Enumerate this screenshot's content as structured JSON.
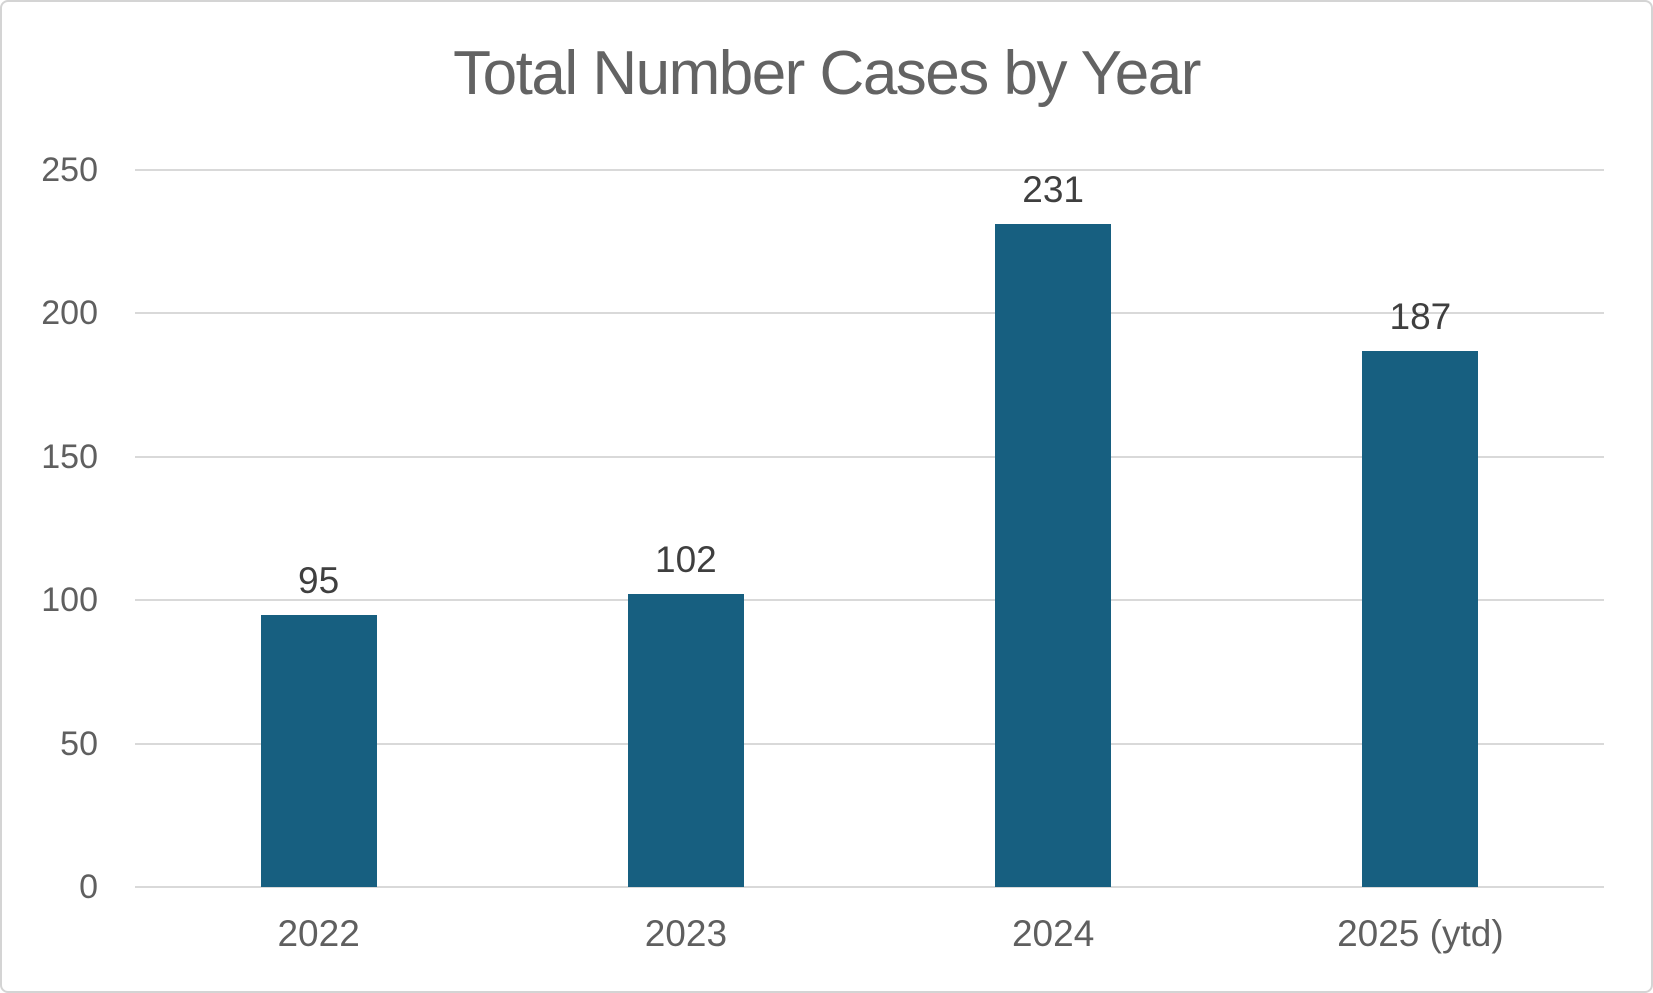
{
  "chart_data": {
    "type": "bar",
    "title": "Total Number Cases by Year",
    "categories": [
      "2022",
      "2023",
      "2024",
      "2025 (ytd)"
    ],
    "values": [
      95,
      102,
      231,
      187
    ],
    "series": [
      {
        "name": "Total Number Cases",
        "values": [
          95,
          102,
          231,
          187
        ]
      }
    ],
    "data_labels": [
      "95",
      "102",
      "231",
      "187"
    ],
    "y_ticks": [
      250,
      200,
      150,
      100,
      50,
      0
    ],
    "ylim": [
      0,
      250
    ],
    "xlabel": "",
    "ylabel": "",
    "grid": "horizontal",
    "legend": "none",
    "colors": {
      "bar": "#175f80",
      "gridline": "#d9d9d9",
      "title_text": "#636363",
      "axis_text": "#5f5f5f",
      "data_label_text": "#3f3f3f",
      "frame_border": "#d4d4d4",
      "background": "#ffffff"
    }
  }
}
